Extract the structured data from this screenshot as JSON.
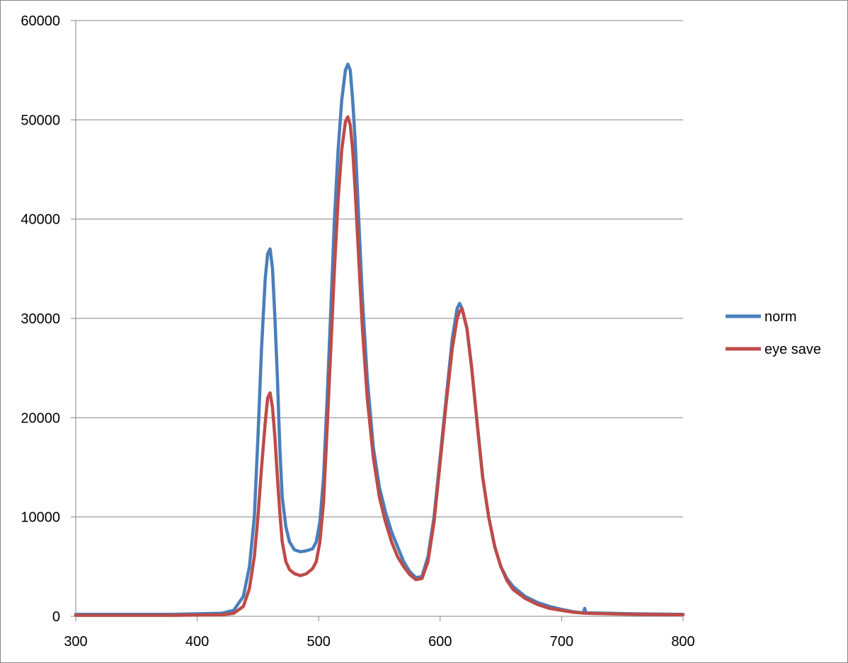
{
  "chart_data": {
    "type": "line",
    "title": "",
    "xlabel": "",
    "ylabel": "",
    "xlim": [
      300,
      800
    ],
    "ylim": [
      0,
      60000
    ],
    "x_ticks": [
      300,
      400,
      500,
      600,
      700,
      800
    ],
    "y_ticks": [
      0,
      10000,
      20000,
      30000,
      40000,
      50000,
      60000
    ],
    "grid": "horizontal",
    "legend_position": "right",
    "series": [
      {
        "name": "norm",
        "color": "#4a7ebb",
        "points": [
          [
            300,
            200
          ],
          [
            380,
            200
          ],
          [
            420,
            300
          ],
          [
            430,
            600
          ],
          [
            438,
            2000
          ],
          [
            443,
            5000
          ],
          [
            447,
            10000
          ],
          [
            450,
            18000
          ],
          [
            453,
            27000
          ],
          [
            456,
            34000
          ],
          [
            458,
            36500
          ],
          [
            460,
            37000
          ],
          [
            462,
            35000
          ],
          [
            464,
            30000
          ],
          [
            466,
            24000
          ],
          [
            468,
            17000
          ],
          [
            470,
            12000
          ],
          [
            473,
            9000
          ],
          [
            476,
            7500
          ],
          [
            480,
            6700
          ],
          [
            485,
            6500
          ],
          [
            490,
            6600
          ],
          [
            495,
            6800
          ],
          [
            498,
            7500
          ],
          [
            501,
            9500
          ],
          [
            504,
            14000
          ],
          [
            507,
            22000
          ],
          [
            510,
            31000
          ],
          [
            513,
            40000
          ],
          [
            516,
            47000
          ],
          [
            519,
            52000
          ],
          [
            522,
            55000
          ],
          [
            524,
            55600
          ],
          [
            526,
            55000
          ],
          [
            528,
            52000
          ],
          [
            530,
            48000
          ],
          [
            533,
            40000
          ],
          [
            536,
            32000
          ],
          [
            540,
            24000
          ],
          [
            545,
            17000
          ],
          [
            550,
            13000
          ],
          [
            555,
            10500
          ],
          [
            560,
            8500
          ],
          [
            565,
            7000
          ],
          [
            570,
            5500
          ],
          [
            575,
            4500
          ],
          [
            580,
            3900
          ],
          [
            585,
            4000
          ],
          [
            590,
            6000
          ],
          [
            595,
            10000
          ],
          [
            600,
            16000
          ],
          [
            605,
            22000
          ],
          [
            610,
            28000
          ],
          [
            614,
            31000
          ],
          [
            616,
            31500
          ],
          [
            618,
            31000
          ],
          [
            622,
            29000
          ],
          [
            626,
            25000
          ],
          [
            630,
            20000
          ],
          [
            635,
            14000
          ],
          [
            640,
            10000
          ],
          [
            645,
            7000
          ],
          [
            650,
            5000
          ],
          [
            655,
            3800
          ],
          [
            660,
            3000
          ],
          [
            670,
            2000
          ],
          [
            680,
            1400
          ],
          [
            690,
            1000
          ],
          [
            700,
            700
          ],
          [
            710,
            450
          ],
          [
            718,
            350
          ],
          [
            719,
            800
          ],
          [
            720,
            350
          ],
          [
            740,
            300
          ],
          [
            760,
            250
          ],
          [
            800,
            200
          ]
        ]
      },
      {
        "name": "eye save",
        "color": "#be4b48",
        "points": [
          [
            300,
            100
          ],
          [
            380,
            100
          ],
          [
            420,
            150
          ],
          [
            430,
            300
          ],
          [
            438,
            1000
          ],
          [
            443,
            2800
          ],
          [
            447,
            6000
          ],
          [
            450,
            10000
          ],
          [
            453,
            15000
          ],
          [
            456,
            19500
          ],
          [
            458,
            22000
          ],
          [
            460,
            22500
          ],
          [
            462,
            21000
          ],
          [
            464,
            18000
          ],
          [
            466,
            14000
          ],
          [
            468,
            10500
          ],
          [
            470,
            7500
          ],
          [
            473,
            5500
          ],
          [
            476,
            4700
          ],
          [
            480,
            4300
          ],
          [
            485,
            4100
          ],
          [
            490,
            4300
          ],
          [
            495,
            4800
          ],
          [
            498,
            5500
          ],
          [
            501,
            7500
          ],
          [
            504,
            11500
          ],
          [
            507,
            19000
          ],
          [
            510,
            27000
          ],
          [
            513,
            35000
          ],
          [
            516,
            42000
          ],
          [
            519,
            47000
          ],
          [
            522,
            49800
          ],
          [
            524,
            50300
          ],
          [
            526,
            49500
          ],
          [
            528,
            47000
          ],
          [
            530,
            43000
          ],
          [
            533,
            36000
          ],
          [
            536,
            29000
          ],
          [
            540,
            22000
          ],
          [
            545,
            16000
          ],
          [
            550,
            12000
          ],
          [
            555,
            9500
          ],
          [
            560,
            7500
          ],
          [
            565,
            6000
          ],
          [
            570,
            5000
          ],
          [
            575,
            4200
          ],
          [
            580,
            3700
          ],
          [
            585,
            3800
          ],
          [
            590,
            5500
          ],
          [
            595,
            9500
          ],
          [
            600,
            15500
          ],
          [
            605,
            21500
          ],
          [
            610,
            27000
          ],
          [
            614,
            30000
          ],
          [
            616,
            30700
          ],
          [
            618,
            31000
          ],
          [
            622,
            29000
          ],
          [
            626,
            25000
          ],
          [
            630,
            20000
          ],
          [
            635,
            14000
          ],
          [
            640,
            10000
          ],
          [
            645,
            7000
          ],
          [
            650,
            5000
          ],
          [
            655,
            3600
          ],
          [
            660,
            2700
          ],
          [
            670,
            1800
          ],
          [
            680,
            1200
          ],
          [
            690,
            800
          ],
          [
            700,
            600
          ],
          [
            710,
            400
          ],
          [
            720,
            300
          ],
          [
            740,
            250
          ],
          [
            760,
            200
          ],
          [
            800,
            150
          ]
        ]
      }
    ]
  }
}
